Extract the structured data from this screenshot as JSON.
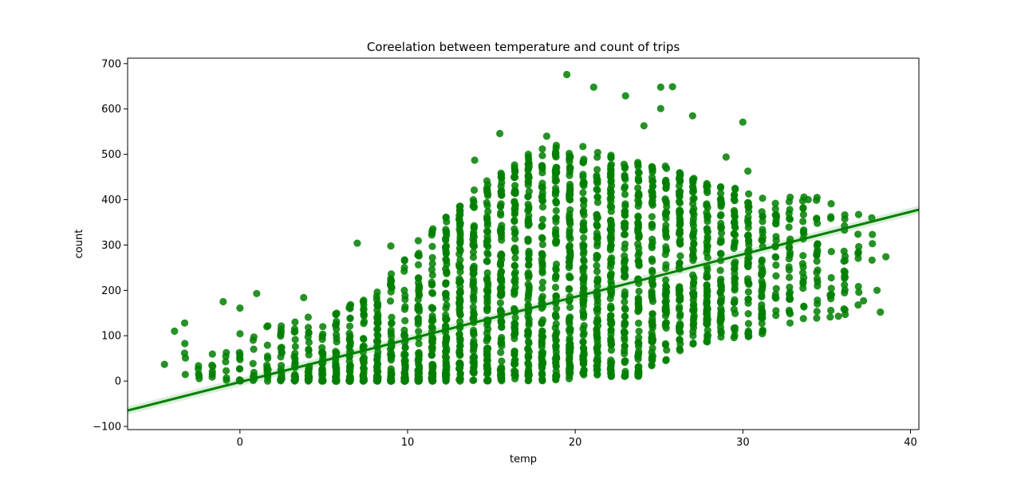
{
  "chart_data": {
    "type": "scatter",
    "title": "Coreelation between temperature and count of trips",
    "xlabel": "temp",
    "ylabel": "count",
    "xlim": [
      -6.7,
      40.5
    ],
    "ylim": [
      -107,
      712
    ],
    "xticks": [
      0,
      10,
      20,
      30,
      40
    ],
    "yticks": [
      -100,
      0,
      100,
      200,
      300,
      400,
      500,
      600,
      700
    ],
    "grid": false,
    "legend": "none",
    "colors": {
      "points": "#007f00",
      "line": "#008000",
      "band": "#2ca02c"
    },
    "regression": {
      "x": [
        -6.7,
        40.5
      ],
      "y": [
        -65,
        378
      ]
    },
    "notable_points": [
      {
        "x": -4.5,
        "y": 37
      },
      {
        "x": -3.9,
        "y": 110
      },
      {
        "x": -3.3,
        "y": 128
      },
      {
        "x": -1.0,
        "y": 175
      },
      {
        "x": 0.0,
        "y": 161
      },
      {
        "x": 1.0,
        "y": 193
      },
      {
        "x": 3.8,
        "y": 184
      },
      {
        "x": 7.0,
        "y": 304
      },
      {
        "x": 9.0,
        "y": 298
      },
      {
        "x": 14.0,
        "y": 487
      },
      {
        "x": 15.5,
        "y": 546
      },
      {
        "x": 17.2,
        "y": 500
      },
      {
        "x": 18.3,
        "y": 540
      },
      {
        "x": 19.5,
        "y": 676
      },
      {
        "x": 21.1,
        "y": 648
      },
      {
        "x": 23.0,
        "y": 629
      },
      {
        "x": 24.1,
        "y": 563
      },
      {
        "x": 25.1,
        "y": 648
      },
      {
        "x": 25.1,
        "y": 601
      },
      {
        "x": 25.8,
        "y": 649
      },
      {
        "x": 27.0,
        "y": 585
      },
      {
        "x": 29.0,
        "y": 494
      },
      {
        "x": 30.0,
        "y": 571
      },
      {
        "x": 30.3,
        "y": 463
      },
      {
        "x": 33.9,
        "y": 400
      },
      {
        "x": 35.7,
        "y": 143
      },
      {
        "x": 37.2,
        "y": 177
      },
      {
        "x": 38.0,
        "y": 200
      },
      {
        "x": 38.2,
        "y": 152
      }
    ],
    "density_profile": [
      {
        "x": -4,
        "low": 5,
        "high": 110,
        "n": 10
      },
      {
        "x": -2,
        "low": 5,
        "high": 70,
        "n": 16
      },
      {
        "x": 0,
        "low": 0,
        "high": 110,
        "n": 30
      },
      {
        "x": 2,
        "low": 0,
        "high": 125,
        "n": 55
      },
      {
        "x": 4,
        "low": 0,
        "high": 140,
        "n": 80
      },
      {
        "x": 6,
        "low": 0,
        "high": 165,
        "n": 100
      },
      {
        "x": 8,
        "low": 0,
        "high": 200,
        "n": 130
      },
      {
        "x": 10,
        "low": 0,
        "high": 290,
        "n": 160
      },
      {
        "x": 12,
        "low": 0,
        "high": 350,
        "n": 190
      },
      {
        "x": 14,
        "low": 0,
        "high": 420,
        "n": 200
      },
      {
        "x": 16,
        "low": 0,
        "high": 470,
        "n": 200
      },
      {
        "x": 18,
        "low": 0,
        "high": 520,
        "n": 200
      },
      {
        "x": 20,
        "low": 5,
        "high": 520,
        "n": 200
      },
      {
        "x": 22,
        "low": 10,
        "high": 500,
        "n": 190
      },
      {
        "x": 24,
        "low": 10,
        "high": 480,
        "n": 170
      },
      {
        "x": 26,
        "low": 70,
        "high": 470,
        "n": 150
      },
      {
        "x": 28,
        "low": 85,
        "high": 440,
        "n": 120
      },
      {
        "x": 30,
        "low": 95,
        "high": 420,
        "n": 90
      },
      {
        "x": 32,
        "low": 100,
        "high": 410,
        "n": 60
      },
      {
        "x": 34,
        "low": 130,
        "high": 410,
        "n": 45
      },
      {
        "x": 36,
        "low": 140,
        "high": 390,
        "n": 25
      },
      {
        "x": 37.5,
        "low": 170,
        "high": 360,
        "n": 8
      }
    ]
  }
}
